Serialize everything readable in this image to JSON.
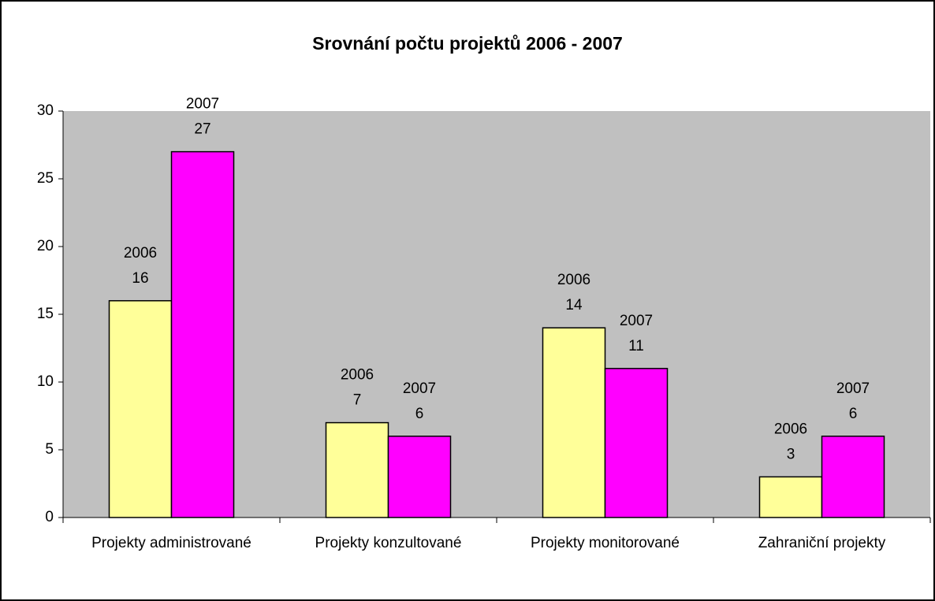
{
  "chart_data": {
    "type": "bar",
    "title": "Srovnání počtu projektů 2006 - 2007",
    "categories": [
      "Projekty administrované",
      "Projekty konzultované",
      "Projekty monitorované",
      "Zahraniční projekty"
    ],
    "series": [
      {
        "name": "2006",
        "color": "#ffff99",
        "values": [
          16,
          7,
          14,
          3
        ]
      },
      {
        "name": "2007",
        "color": "#ff00ff",
        "values": [
          27,
          6,
          11,
          6
        ]
      }
    ],
    "ylim": [
      0,
      30
    ],
    "yticks": [
      0,
      5,
      10,
      15,
      20,
      25,
      30
    ],
    "grid": false
  }
}
